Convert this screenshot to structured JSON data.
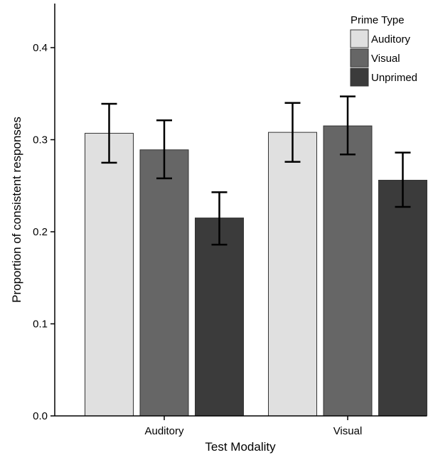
{
  "chart_data": {
    "type": "bar",
    "title": "",
    "xlabel": "Test Modality",
    "ylabel": "Proportion of consistent responses",
    "categories": [
      "Auditory",
      "Visual"
    ],
    "ylim": [
      0,
      0.45
    ],
    "yticks": [
      "0.0",
      "0.1",
      "0.2",
      "0.3",
      "0.4"
    ],
    "grid": false,
    "legend": {
      "title": "Prime Type",
      "placement": "top-right"
    },
    "series": [
      {
        "name": "Auditory",
        "color": "#e0e0e0",
        "values": [
          0.307,
          0.308
        ],
        "err_low": [
          0.275,
          0.276
        ],
        "err_high": [
          0.339,
          0.34
        ]
      },
      {
        "name": "Visual",
        "color": "#666666",
        "values": [
          0.289,
          0.315
        ],
        "err_low": [
          0.258,
          0.284
        ],
        "err_high": [
          0.321,
          0.347
        ]
      },
      {
        "name": "Unprimed",
        "color": "#3b3b3b",
        "values": [
          0.215,
          0.256
        ],
        "err_low": [
          0.186,
          0.227
        ],
        "err_high": [
          0.243,
          0.286
        ]
      }
    ]
  }
}
